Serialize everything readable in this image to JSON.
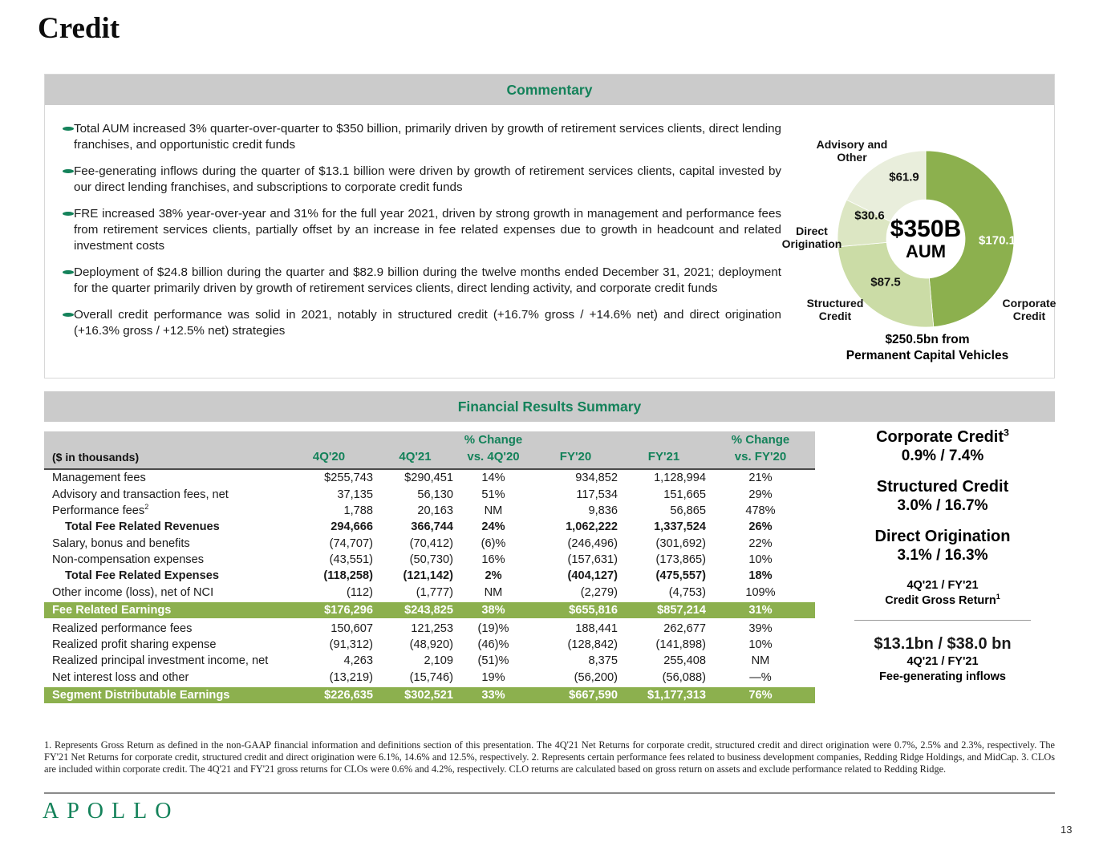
{
  "page": {
    "title": "Credit",
    "page_number": "13",
    "logo_text": "APOLLO"
  },
  "commentary": {
    "header": "Commentary",
    "bullets": [
      "Total AUM increased 3% quarter-over-quarter to $350 billion, primarily driven by growth of retirement services clients, direct lending franchises, and opportunistic credit funds",
      "Fee-generating inflows during the quarter of $13.1 billion were driven by growth of retirement services clients, capital invested by our direct lending franchises, and subscriptions to corporate credit funds",
      "FRE increased 38% year-over-year and 31% for the full year 2021, driven by strong growth in management and performance fees from retirement services clients, partially offset by an increase in fee related expenses due to growth in headcount and related investment costs",
      "Deployment of $24.8 billion during the quarter and $82.9 billion during the twelve months ended December 31, 2021; deployment for the quarter primarily driven by growth of retirement services clients, direct lending activity, and corporate credit funds",
      "Overall credit performance was solid in 2021, notably in structured credit (+16.7% gross / +14.6% net) and direct origination (+16.3% gross / +12.5% net) strategies"
    ]
  },
  "chart_data": {
    "type": "pie",
    "title": "Credit AUM by strategy ($B)",
    "center_value": "$350B",
    "center_label": "AUM",
    "total": 350.1,
    "legend_position": "around",
    "segments": [
      {
        "label": "Corporate Credit",
        "value": 170.1,
        "display": "$170.1",
        "color": "#8cb04e"
      },
      {
        "label": "Structured Credit",
        "value": 87.5,
        "display": "$87.5",
        "color": "#cbdca6"
      },
      {
        "label": "Direct Origination",
        "value": 30.6,
        "display": "$30.6",
        "color": "#dce6c3"
      },
      {
        "label": "Advisory and Other",
        "value": 61.9,
        "display": "$61.9",
        "color": "#e9eedc"
      }
    ],
    "caption_line1": "$250.5bn from",
    "caption_line2": "Permanent Capital Vehicles"
  },
  "financials": {
    "header": "Financial Results Summary",
    "unit_label": "($ in thousands)",
    "pct_change_label": "% Change",
    "columns": [
      "4Q'20",
      "4Q'21",
      "vs. 4Q'20",
      "FY'20",
      "FY'21",
      "vs. FY'20"
    ],
    "rows": [
      {
        "label": "Management fees",
        "sup": "",
        "style": "normal",
        "v": [
          "$255,743",
          "$290,451",
          "14%",
          "934,852",
          "1,128,994",
          "21%"
        ]
      },
      {
        "label": "Advisory and transaction fees, net",
        "sup": "",
        "style": "normal",
        "v": [
          "37,135",
          "56,130",
          "51%",
          "117,534",
          "151,665",
          "29%"
        ]
      },
      {
        "label": "Performance fees",
        "sup": "2",
        "style": "normal",
        "v": [
          "1,788",
          "20,163",
          "NM",
          "9,836",
          "56,865",
          "478%"
        ]
      },
      {
        "label": "Total Fee Related Revenues",
        "sup": "",
        "style": "subtotal",
        "v": [
          "294,666",
          "366,744",
          "24%",
          "1,062,222",
          "1,337,524",
          "26%"
        ]
      },
      {
        "label": "Salary, bonus and benefits",
        "sup": "",
        "style": "normal",
        "v": [
          "(74,707)",
          "(70,412)",
          "(6)%",
          "(246,496)",
          "(301,692)",
          "22%"
        ]
      },
      {
        "label": "Non-compensation expenses",
        "sup": "",
        "style": "normal",
        "v": [
          "(43,551)",
          "(50,730)",
          "16%",
          "(157,631)",
          "(173,865)",
          "10%"
        ]
      },
      {
        "label": "Total Fee Related Expenses",
        "sup": "",
        "style": "subtotal",
        "v": [
          "(118,258)",
          "(121,142)",
          "2%",
          "(404,127)",
          "(475,557)",
          "18%"
        ]
      },
      {
        "label": "Other income (loss), net of NCI",
        "sup": "",
        "style": "normal",
        "v": [
          "(112)",
          "(1,777)",
          "NM",
          "(2,279)",
          "(4,753)",
          "109%"
        ]
      },
      {
        "label": "Fee Related Earnings",
        "sup": "",
        "style": "highlight",
        "v": [
          "$176,296",
          "$243,825",
          "38%",
          "$655,816",
          "$857,214",
          "31%"
        ]
      },
      {
        "label": "Realized performance fees",
        "sup": "",
        "style": "normal",
        "v": [
          "150,607",
          "121,253",
          "(19)%",
          "188,441",
          "262,677",
          "39%"
        ]
      },
      {
        "label": "Realized profit sharing expense",
        "sup": "",
        "style": "normal",
        "v": [
          "(91,312)",
          "(48,920)",
          "(46)%",
          "(128,842)",
          "(141,898)",
          "10%"
        ]
      },
      {
        "label": "Realized principal investment income, net",
        "sup": "",
        "style": "normal",
        "v": [
          "4,263",
          "2,109",
          "(51)%",
          "8,375",
          "255,408",
          "NM"
        ]
      },
      {
        "label": "Net interest loss and other",
        "sup": "",
        "style": "normal",
        "v": [
          "(13,219)",
          "(15,746)",
          "19%",
          "(56,200)",
          "(56,088)",
          "—%"
        ]
      },
      {
        "label": "Segment Distributable Earnings",
        "sup": "",
        "style": "highlight",
        "v": [
          "$226,635",
          "$302,521",
          "33%",
          "$667,590",
          "$1,177,313",
          "76%"
        ]
      }
    ]
  },
  "sidebar": {
    "items": [
      {
        "title": "Corporate Credit",
        "sup": "3",
        "value": "0.9% / 7.4%"
      },
      {
        "title": "Structured Credit",
        "sup": "",
        "value": "3.0% / 16.7%"
      },
      {
        "title": "Direct Origination",
        "sup": "",
        "value": "3.1% / 16.3%"
      }
    ],
    "gross_return_line1": "4Q'21 / FY'21",
    "gross_return_line2": "Credit Gross Return",
    "gross_return_sup": "1",
    "inflows_value": "$13.1bn / $38.0 bn",
    "inflows_line1": "4Q'21 / FY'21",
    "inflows_line2": "Fee-generating inflows"
  },
  "footnote": "1. Represents Gross Return as defined in the non-GAAP financial information and definitions section of this presentation. The 4Q'21 Net Returns for corporate credit, structured credit and direct origination were 0.7%, 2.5% and 2.3%, respectively. The FY'21 Net Returns for corporate credit, structured credit and direct origination were 6.1%, 14.6% and 12.5%, respectively. 2. Represents certain performance fees related to business development companies, Redding Ridge Holdings, and MidCap. 3. CLOs are included within corporate credit. The 4Q'21 and FY'21 gross returns for CLOs were 0.6% and 4.2%, respectively. CLO returns are calculated based on gross return on assets and exclude performance related to Redding Ridge.",
  "colors": {
    "accent_green": "#14825a",
    "highlight_green": "#8cb04e",
    "bar_gray": "#cbcbcb"
  }
}
